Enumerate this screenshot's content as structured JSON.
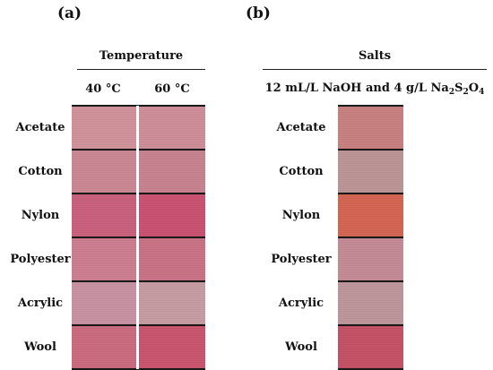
{
  "panel_a": {
    "label": "(a)",
    "group_header": "Temperature",
    "columns": [
      "40 °C",
      "60 °C"
    ],
    "rows": [
      "Acetate",
      "Cotton",
      "Nylon",
      "Polyester",
      "Acrylic",
      "Wool"
    ],
    "swatch_colors": [
      [
        "#cf8f99",
        "#cd8b96"
      ],
      [
        "#c98592",
        "#c67f8d"
      ],
      [
        "#c75d79",
        "#c84e6d"
      ],
      [
        "#cb7b8d",
        "#c86f83"
      ],
      [
        "#c690a0",
        "#c59aa1"
      ],
      [
        "#c9677d",
        "#c8506a"
      ]
    ]
  },
  "panel_b": {
    "label": "(b)",
    "group_header": "Salts",
    "condition_prefix": "12 mL/L NaOH and 4 g/L Na",
    "sub1": "2",
    "mid": "S",
    "sub2": "2",
    "tail": "O",
    "sub3": "4",
    "rows": [
      "Acetate",
      "Cotton",
      "Nylon",
      "Polyester",
      "Acrylic",
      "Wool"
    ],
    "swatch_colors": [
      "#c77d7d",
      "#bb9294",
      "#d2624e",
      "#c28894",
      "#bc9499",
      "#c44e63"
    ]
  }
}
